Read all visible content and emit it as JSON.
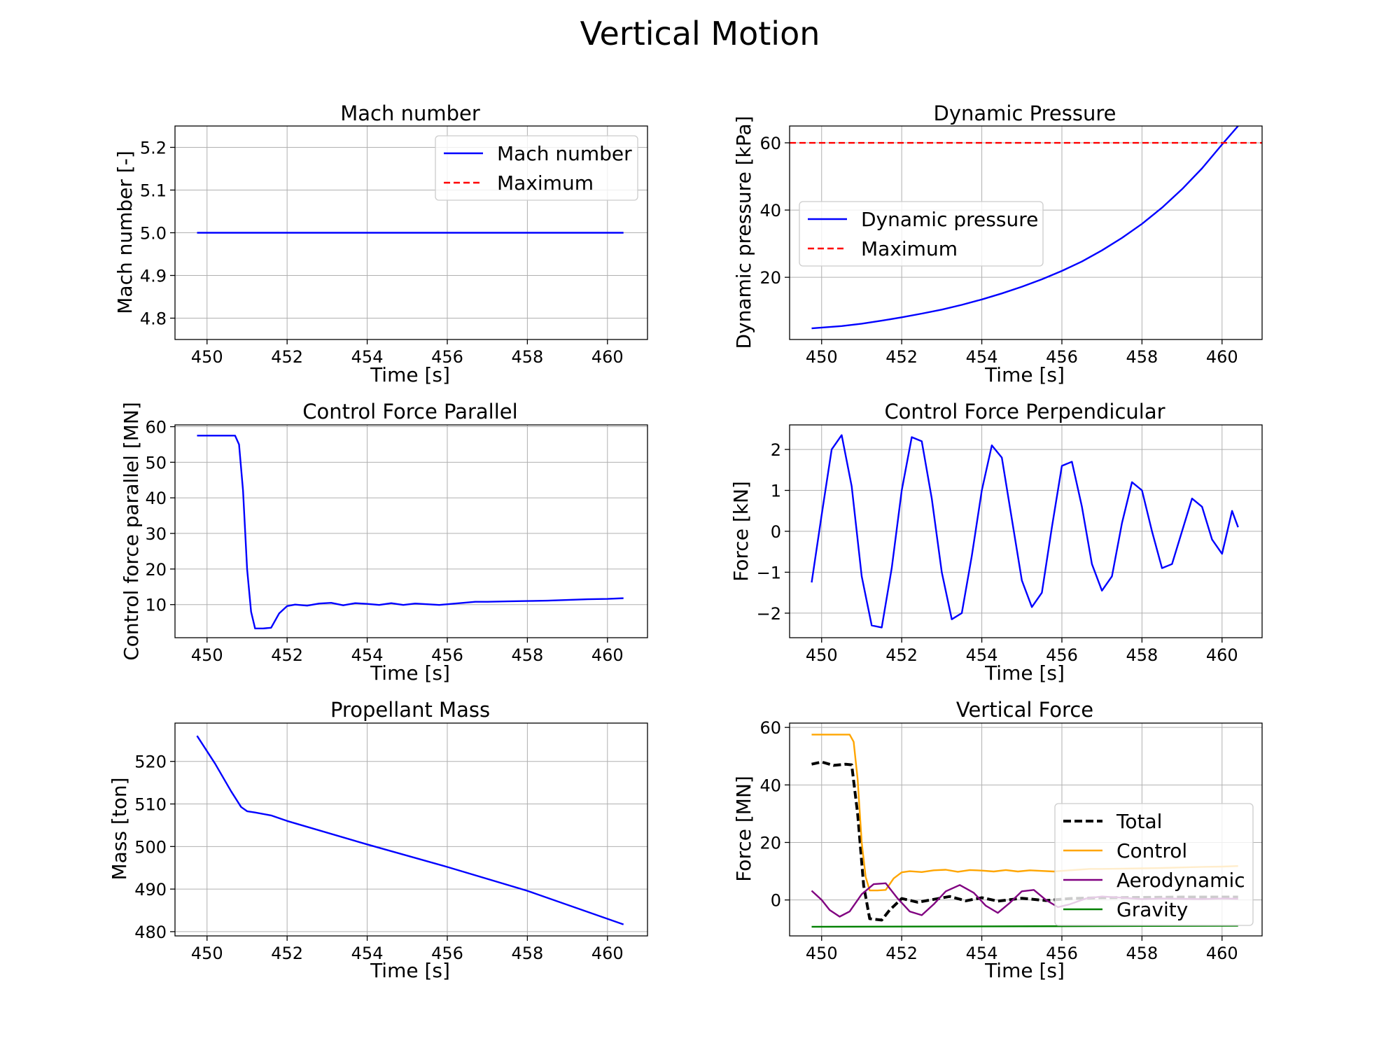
{
  "figure": {
    "title": "Vertical Motion"
  },
  "chart_data": [
    {
      "type": "line",
      "title": "Mach number",
      "xlabel": "Time [s]",
      "ylabel": "Mach number [-]",
      "xlim": [
        449.2,
        461.0
      ],
      "ylim": [
        4.75,
        5.25
      ],
      "xticks": [
        450,
        452,
        454,
        456,
        458,
        460
      ],
      "yticks": [
        4.8,
        4.9,
        5.0,
        5.1,
        5.2
      ],
      "ytick_decimals": 1,
      "grid": true,
      "legend": {
        "placement": "upper right"
      },
      "series": [
        {
          "name": "Mach number",
          "color": "#0000ff",
          "style": "solid",
          "x": [
            449.75,
            460.4
          ],
          "y": [
            5.0,
            5.0
          ]
        },
        {
          "name": "Maximum",
          "color": "#ff0000",
          "style": "dashed",
          "legend_only": true,
          "x": [],
          "y": []
        }
      ]
    },
    {
      "type": "line",
      "title": "Dynamic Pressure",
      "xlabel": "Time [s]",
      "ylabel": "Dynamic pressure [kPa]",
      "xlim": [
        449.2,
        461.0
      ],
      "ylim": [
        1.5,
        65.0
      ],
      "xticks": [
        450,
        452,
        454,
        456,
        458,
        460
      ],
      "yticks": [
        20,
        40,
        60
      ],
      "ytick_decimals": 0,
      "grid": true,
      "legend": {
        "placement": "center left"
      },
      "series": [
        {
          "name": "Dynamic pressure",
          "color": "#0000ff",
          "style": "solid",
          "x": [
            449.75,
            450.5,
            451.0,
            451.5,
            452.0,
            452.5,
            453.0,
            453.5,
            454.0,
            454.5,
            455.0,
            455.5,
            456.0,
            456.5,
            457.0,
            457.5,
            458.0,
            458.5,
            459.0,
            459.5,
            460.0,
            460.4
          ],
          "y": [
            4.8,
            5.5,
            6.2,
            7.1,
            8.1,
            9.2,
            10.4,
            11.8,
            13.4,
            15.2,
            17.2,
            19.4,
            21.9,
            24.7,
            28.0,
            31.7,
            35.9,
            40.7,
            46.2,
            52.4,
            59.5,
            65.0
          ]
        },
        {
          "name": "Maximum",
          "color": "#ff0000",
          "style": "dashed",
          "hline": 60,
          "x": [],
          "y": []
        }
      ]
    },
    {
      "type": "line",
      "title": "Control Force Parallel",
      "xlabel": "Time [s]",
      "ylabel": "Control force parallel [MN]",
      "xlim": [
        449.2,
        461.0
      ],
      "ylim": [
        0.7,
        60.5
      ],
      "xticks": [
        450,
        452,
        454,
        456,
        458,
        460
      ],
      "yticks": [
        10,
        20,
        30,
        40,
        50,
        60
      ],
      "ytick_decimals": 0,
      "grid": true,
      "series": [
        {
          "name": "",
          "color": "#0000ff",
          "style": "solid",
          "x": [
            449.75,
            450.7,
            450.8,
            450.9,
            451.0,
            451.1,
            451.2,
            451.4,
            451.6,
            451.8,
            452.0,
            452.2,
            452.5,
            452.8,
            453.1,
            453.4,
            453.7,
            454.0,
            454.3,
            454.6,
            454.9,
            455.2,
            455.5,
            455.8,
            456.1,
            456.4,
            456.7,
            457.0,
            457.5,
            458.0,
            458.5,
            459.0,
            459.5,
            460.0,
            460.4
          ],
          "y": [
            57.5,
            57.5,
            55.0,
            42.0,
            20.0,
            8.0,
            3.3,
            3.3,
            3.5,
            7.5,
            9.6,
            10.0,
            9.7,
            10.3,
            10.5,
            9.8,
            10.4,
            10.2,
            9.9,
            10.4,
            9.9,
            10.3,
            10.1,
            9.9,
            10.2,
            10.5,
            10.8,
            10.8,
            10.9,
            11.0,
            11.1,
            11.3,
            11.5,
            11.6,
            11.8
          ]
        }
      ]
    },
    {
      "type": "line",
      "title": "Control Force Perpendicular",
      "xlabel": "Time [s]",
      "ylabel": "Force [kN]",
      "xlim": [
        449.2,
        461.0
      ],
      "ylim": [
        -2.6,
        2.6
      ],
      "xticks": [
        450,
        452,
        454,
        456,
        458,
        460
      ],
      "yticks": [
        -2,
        -1,
        0,
        1,
        2
      ],
      "ytick_decimals": 0,
      "grid": true,
      "series": [
        {
          "name": "",
          "color": "#0000ff",
          "style": "solid",
          "x": [
            449.75,
            450.0,
            450.25,
            450.5,
            450.75,
            451.0,
            451.25,
            451.5,
            451.75,
            452.0,
            452.25,
            452.5,
            452.75,
            453.0,
            453.25,
            453.5,
            453.75,
            454.0,
            454.25,
            454.5,
            454.75,
            455.0,
            455.25,
            455.5,
            455.75,
            456.0,
            456.25,
            456.5,
            456.75,
            457.0,
            457.25,
            457.5,
            457.75,
            458.0,
            458.25,
            458.5,
            458.75,
            459.0,
            459.25,
            459.5,
            459.75,
            460.0,
            460.25,
            460.4
          ],
          "y": [
            -1.25,
            0.4,
            2.0,
            2.35,
            1.1,
            -1.1,
            -2.3,
            -2.35,
            -0.9,
            1.0,
            2.3,
            2.2,
            0.8,
            -1.0,
            -2.15,
            -2.0,
            -0.6,
            1.0,
            2.1,
            1.8,
            0.3,
            -1.2,
            -1.85,
            -1.5,
            0.1,
            1.6,
            1.7,
            0.6,
            -0.8,
            -1.45,
            -1.1,
            0.2,
            1.2,
            1.0,
            0.0,
            -0.9,
            -0.8,
            0.0,
            0.8,
            0.6,
            -0.2,
            -0.55,
            0.5,
            0.1
          ]
        }
      ]
    },
    {
      "type": "line",
      "title": "Propellant Mass",
      "xlabel": "Time [s]",
      "ylabel": "Mass [ton]",
      "xlim": [
        449.2,
        461.0
      ],
      "ylim": [
        479.0,
        529.0
      ],
      "xticks": [
        450,
        452,
        454,
        456,
        458,
        460
      ],
      "yticks": [
        480,
        490,
        500,
        510,
        520
      ],
      "ytick_decimals": 0,
      "grid": true,
      "series": [
        {
          "name": "",
          "color": "#0000ff",
          "style": "solid",
          "x": [
            449.75,
            450.2,
            450.6,
            450.85,
            451.0,
            451.2,
            451.6,
            452.0,
            454.0,
            456.0,
            458.0,
            460.4
          ],
          "y": [
            526.0,
            519.5,
            513.0,
            509.3,
            508.3,
            508.0,
            507.3,
            506.0,
            500.5,
            495.2,
            489.6,
            481.7
          ]
        }
      ]
    },
    {
      "type": "line",
      "title": "Vertical Force",
      "xlabel": "Time [s]",
      "ylabel": "Force [MN]",
      "xlim": [
        449.2,
        461.0
      ],
      "ylim": [
        -12.5,
        61.5
      ],
      "xticks": [
        450,
        452,
        454,
        456,
        458,
        460
      ],
      "yticks": [
        0,
        20,
        40,
        60
      ],
      "ytick_decimals": 0,
      "grid": true,
      "legend": {
        "placement": "lower right"
      },
      "series": [
        {
          "name": "Total",
          "color": "#000000",
          "style": "dashed-thick",
          "x": [
            449.75,
            450.0,
            450.3,
            450.6,
            450.75,
            450.9,
            451.05,
            451.2,
            451.5,
            451.7,
            452.0,
            452.4,
            452.8,
            453.2,
            453.6,
            454.0,
            454.4,
            455.0,
            455.6,
            456.2,
            457.0,
            458.0,
            459.0,
            460.4
          ],
          "y": [
            47.2,
            48.0,
            46.8,
            47.2,
            47.0,
            30.0,
            5.0,
            -6.5,
            -7.0,
            -3.5,
            0.5,
            -0.8,
            0.2,
            1.2,
            -0.3,
            0.8,
            -0.4,
            0.6,
            -0.2,
            0.5,
            0.8,
            0.9,
            1.0,
            1.0
          ]
        },
        {
          "name": "Control",
          "color": "#ffa500",
          "style": "solid",
          "x": [
            449.75,
            450.7,
            450.8,
            450.9,
            451.0,
            451.1,
            451.2,
            451.4,
            451.6,
            451.8,
            452.0,
            452.2,
            452.5,
            452.8,
            453.1,
            453.4,
            453.7,
            454.0,
            454.3,
            454.6,
            454.9,
            455.2,
            455.5,
            455.8,
            456.1,
            456.4,
            456.7,
            457.0,
            457.5,
            458.0,
            458.5,
            459.0,
            459.5,
            460.0,
            460.4
          ],
          "y": [
            57.5,
            57.5,
            55.0,
            42.0,
            20.0,
            8.0,
            3.3,
            3.3,
            3.5,
            7.5,
            9.6,
            10.0,
            9.7,
            10.3,
            10.5,
            9.8,
            10.4,
            10.2,
            9.9,
            10.4,
            9.9,
            10.3,
            10.1,
            9.9,
            10.2,
            10.5,
            10.8,
            10.8,
            10.9,
            11.0,
            11.1,
            11.3,
            11.5,
            11.6,
            11.8
          ]
        },
        {
          "name": "Aerodynamic",
          "color": "#800080",
          "style": "solid",
          "x": [
            449.75,
            450.0,
            450.2,
            450.45,
            450.7,
            451.0,
            451.3,
            451.6,
            451.9,
            452.2,
            452.5,
            452.8,
            453.1,
            453.45,
            453.8,
            454.1,
            454.4,
            454.7,
            455.0,
            455.3,
            455.6,
            455.9,
            456.2,
            456.6,
            457.0,
            457.5,
            458.0,
            458.5,
            459.0,
            459.5,
            460.0,
            460.4
          ],
          "y": [
            3.2,
            0.0,
            -3.5,
            -5.8,
            -4.0,
            2.0,
            5.5,
            5.8,
            0.5,
            -4.0,
            -5.3,
            -1.5,
            3.0,
            5.2,
            2.5,
            -2.0,
            -4.5,
            -1.0,
            3.0,
            3.5,
            0.0,
            -2.5,
            -1.5,
            0.5,
            1.2,
            0.8,
            0.3,
            0.5,
            0.4,
            0.3,
            0.5,
            0.4
          ]
        },
        {
          "name": "Gravity",
          "color": "#008000",
          "style": "solid",
          "x": [
            449.75,
            460.4
          ],
          "y": [
            -9.3,
            -9.0
          ]
        }
      ]
    }
  ]
}
